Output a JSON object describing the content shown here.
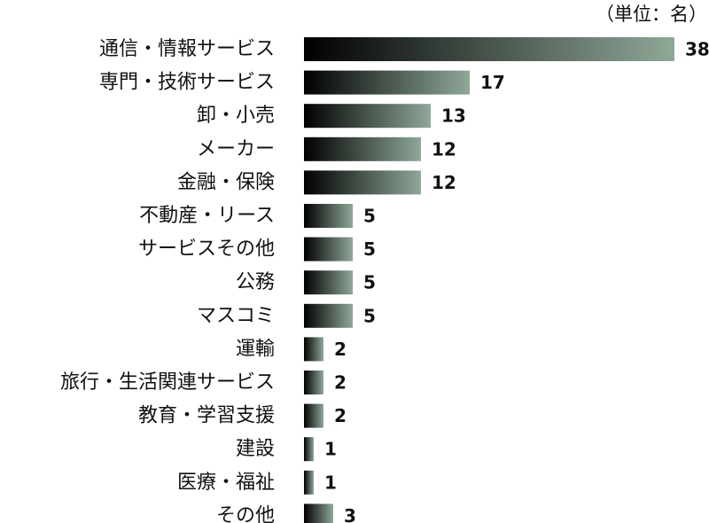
{
  "chart_data": {
    "type": "bar",
    "orientation": "horizontal",
    "unit_label": "（単位：名）",
    "categories": [
      "通信・情報サービス",
      "専門・技術サービス",
      "卸・小売",
      "メーカー",
      "金融・保険",
      "不動産・リース",
      "サービスその他",
      "公務",
      "マスコミ",
      "運輸",
      "旅行・生活関連サービス",
      "教育・学習支援",
      "建設",
      "医療・福祉",
      "その他"
    ],
    "values": [
      38,
      17,
      13,
      12,
      12,
      5,
      5,
      5,
      5,
      2,
      2,
      2,
      1,
      1,
      3
    ],
    "xlim": [
      0,
      38
    ],
    "grid": false,
    "legend": "none",
    "colors": {
      "bar_start": "#000000",
      "bar_end": "#8fa898",
      "text": "#111111"
    }
  }
}
